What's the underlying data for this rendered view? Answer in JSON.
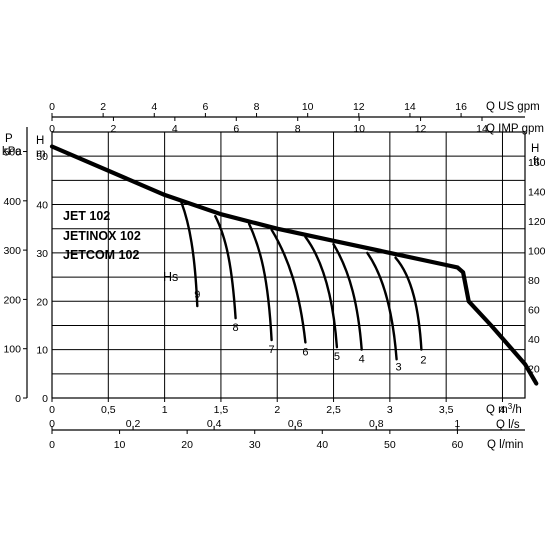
{
  "chart_data": {
    "type": "line",
    "models": [
      "JET 102",
      "JETINOX 102",
      "JETCOM 102"
    ],
    "hs_label": "Hs",
    "grid": true,
    "x_axes": {
      "us_gpm": {
        "label": "Q US gpm",
        "ticks": [
          "0",
          "2",
          "4",
          "6",
          "8",
          "10",
          "12",
          "14",
          "16"
        ],
        "values": [
          0,
          2,
          4,
          6,
          8,
          10,
          12,
          14,
          16
        ],
        "max": 18.5
      },
      "imp_gpm": {
        "label": "Q IMP gpm",
        "ticks": [
          "0",
          "2",
          "4",
          "6",
          "8",
          "10",
          "12",
          "14"
        ],
        "values": [
          0,
          2,
          4,
          6,
          8,
          10,
          12,
          14
        ],
        "max": 15.4
      },
      "m3h": {
        "label_prefix": "Q m",
        "label_sup": "3",
        "label_suffix": "/h",
        "ticks": [
          "0",
          "0,5",
          "1",
          "1,5",
          "2",
          "2,5",
          "3",
          "3,5",
          "4"
        ],
        "values": [
          0,
          0.5,
          1,
          1.5,
          2,
          2.5,
          3,
          3.5,
          4
        ],
        "max": 4.2
      },
      "ls": {
        "label": "Q l/s",
        "ticks": [
          "0",
          "0,2",
          "0,4",
          "0,6",
          "0,8",
          "1"
        ],
        "values": [
          0,
          0.2,
          0.4,
          0.6,
          0.8,
          1.0
        ],
        "max": 1.167
      },
      "lmin": {
        "label": "Q l/min",
        "ticks": [
          "0",
          "10",
          "20",
          "30",
          "40",
          "50",
          "60"
        ],
        "values": [
          0,
          10,
          20,
          30,
          40,
          50,
          60
        ],
        "max": 70
      }
    },
    "y_axes": {
      "m": {
        "label_top": "H",
        "label_bottom": "m",
        "ticks": [
          "0",
          "10",
          "20",
          "30",
          "40",
          "50"
        ],
        "values": [
          0,
          10,
          20,
          30,
          40,
          50
        ],
        "max": 55
      },
      "kpa": {
        "label_top": "P",
        "label_bottom": "kPa",
        "ticks": [
          "0",
          "100",
          "200",
          "300",
          "400",
          "500"
        ],
        "values": [
          0,
          100,
          200,
          300,
          400,
          500
        ],
        "max": 539.6
      },
      "ft": {
        "label_top": "H",
        "label_bottom": "ft",
        "ticks": [
          "20",
          "40",
          "60",
          "80",
          "100",
          "120",
          "140",
          "160"
        ],
        "values": [
          20,
          40,
          60,
          80,
          100,
          120,
          140,
          160
        ],
        "max": 180.4
      }
    },
    "series": [
      {
        "name": "main",
        "x": [
          0,
          0.5,
          1.0,
          1.5,
          2.0,
          2.5,
          3.0,
          3.5,
          3.6,
          3.65,
          3.7,
          3.9,
          4.2,
          4.3
        ],
        "y": [
          52,
          47,
          42,
          38,
          35,
          32.5,
          30,
          27.5,
          27,
          26,
          20,
          15,
          7,
          3
        ]
      },
      {
        "name": "9",
        "x": [
          1.15,
          1.22,
          1.27,
          1.29
        ],
        "y": [
          40.4,
          36,
          30,
          19
        ]
      },
      {
        "name": "8",
        "x": [
          1.45,
          1.55,
          1.6,
          1.63
        ],
        "y": [
          37.6,
          33,
          27,
          16.5
        ]
      },
      {
        "name": "7",
        "x": [
          1.75,
          1.85,
          1.92,
          1.95
        ],
        "y": [
          36,
          31,
          25,
          12
        ]
      },
      {
        "name": "6",
        "x": [
          1.95,
          2.1,
          2.2,
          2.25
        ],
        "y": [
          34.8,
          29,
          22,
          11.5
        ]
      },
      {
        "name": "5",
        "x": [
          2.25,
          2.42,
          2.5,
          2.53
        ],
        "y": [
          33.3,
          28,
          20,
          10.5
        ]
      },
      {
        "name": "4",
        "x": [
          2.5,
          2.65,
          2.72,
          2.75
        ],
        "y": [
          31.8,
          26,
          19,
          10
        ]
      },
      {
        "name": "3",
        "x": [
          2.8,
          2.95,
          3.03,
          3.06
        ],
        "y": [
          30,
          25,
          17,
          8
        ]
      },
      {
        "name": "2",
        "x": [
          3.05,
          3.2,
          3.26,
          3.28
        ],
        "y": [
          29,
          25,
          18,
          10
        ]
      }
    ]
  }
}
